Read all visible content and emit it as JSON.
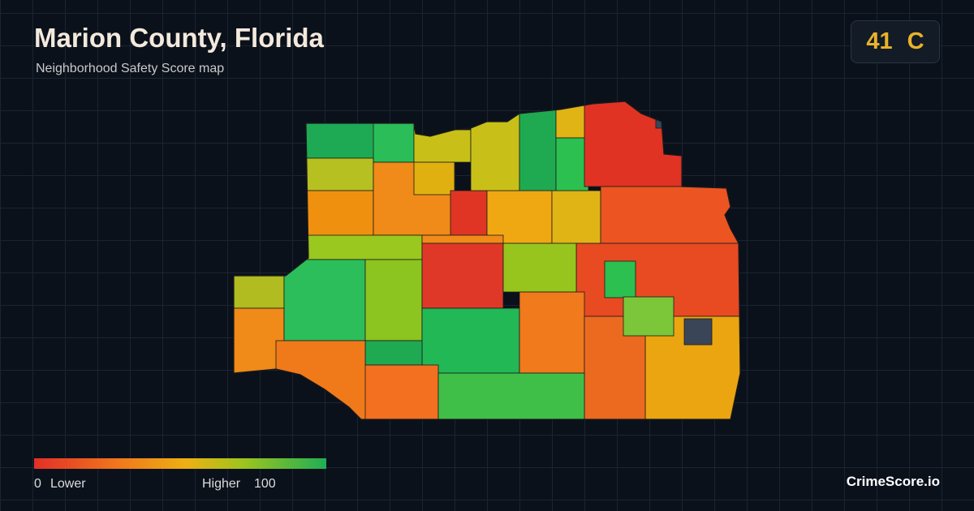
{
  "header": {
    "title": "Marion County, Florida",
    "subtitle": "Neighborhood Safety Score map"
  },
  "score": {
    "value": "41",
    "grade": "C"
  },
  "legend": {
    "min": "0",
    "min_label": "Lower",
    "max_label": "Higher",
    "max": "100"
  },
  "brand": "CrimeScore.io"
}
